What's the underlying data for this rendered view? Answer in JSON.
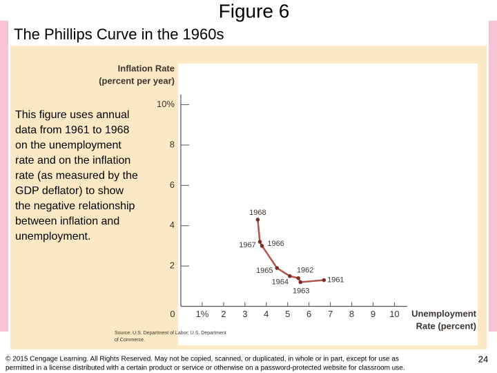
{
  "slide": {
    "title": "Figure 6",
    "subtitle": "The Phillips Curve in the 1960s",
    "description": "This figure uses annual data from 1961 to 1968 on the unemployment rate and on the inflation rate (as measured by the GDP deflator) to show the negative relationship between inflation and unemployment.",
    "footer": [
      "© 2015 Cengage Learning. All Rights Reserved. May not be copied, scanned, or duplicated, in whole or in part, except for use as",
      "permitted in a license distributed with a certain product or service or otherwise on a password-protected website for classroom use."
    ],
    "page_number": "24"
  },
  "chart_data": {
    "type": "line",
    "y_label": [
      "Inflation Rate",
      "(percent per year)"
    ],
    "x_label": [
      "Unemployment",
      "Rate (percent)"
    ],
    "source": [
      "Source: U.S. Department of Labor; U.S. Department",
      "of Commerce."
    ],
    "point_labels": [
      "1968",
      "1967",
      "1966",
      "1965",
      "1964",
      "1962",
      "1963",
      "1961"
    ],
    "x": [
      3.6,
      3.7,
      3.8,
      4.5,
      5.1,
      5.5,
      5.6,
      6.7
    ],
    "series": [
      {
        "color": "#b4534a",
        "values": [
          4.3,
          3.2,
          3.0,
          1.9,
          1.5,
          1.4,
          1.2,
          1.3
        ]
      }
    ],
    "xlim": [
      0,
      10.6
    ],
    "ylim": [
      0,
      10.5
    ],
    "xticks": [
      0,
      {
        "value": 1,
        "label": "1%"
      },
      2,
      3,
      4,
      5,
      6,
      7,
      8,
      9,
      10
    ],
    "yticks": [
      2,
      4,
      6,
      8,
      {
        "value": 10,
        "label": "10%"
      }
    ],
    "grid": false
  }
}
